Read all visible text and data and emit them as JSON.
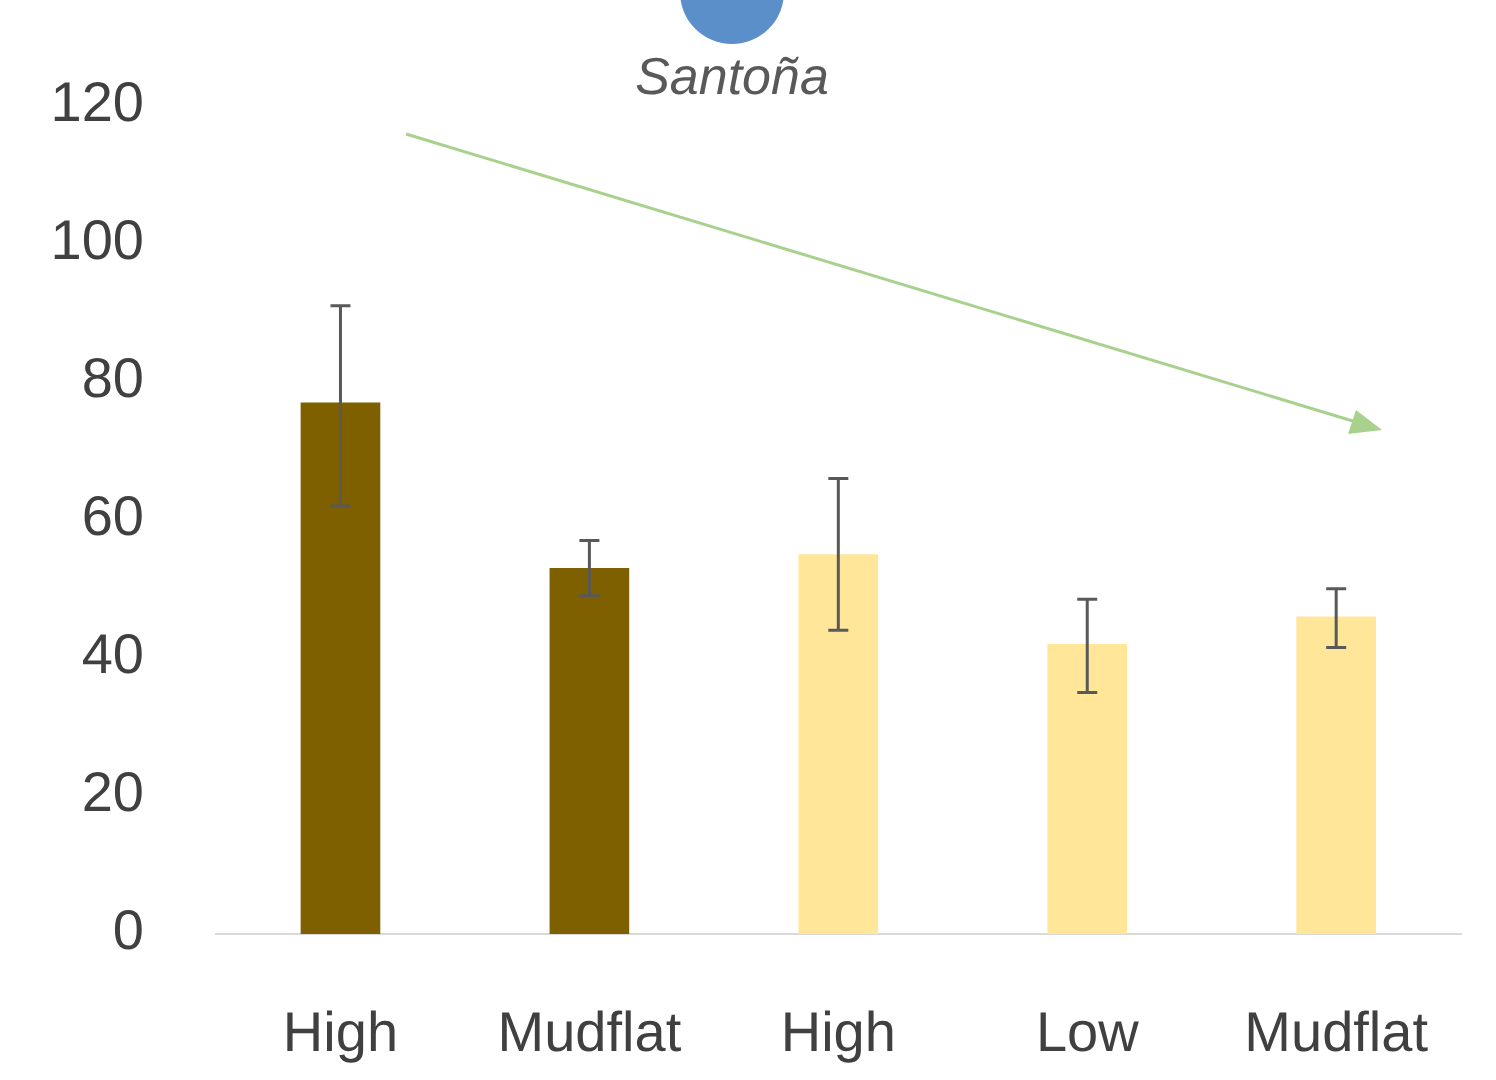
{
  "chart_data": {
    "type": "bar",
    "title": "Santoña",
    "categories": [
      "High",
      "Mudflat",
      "High",
      "Low",
      "Mudflat"
    ],
    "values": [
      77,
      53,
      55,
      42,
      46
    ],
    "colors": [
      "#7f6000",
      "#7f6000",
      "#ffe699",
      "#ffe699",
      "#ffe699"
    ],
    "errors": [
      [
        62,
        91
      ],
      [
        49,
        57
      ],
      [
        44,
        66
      ],
      [
        35,
        48.5
      ],
      [
        41.5,
        50
      ]
    ],
    "ylim": [
      0,
      120
    ],
    "yticks": [
      0,
      20,
      40,
      60,
      80,
      100,
      120
    ],
    "grid": false,
    "legend": false
  }
}
